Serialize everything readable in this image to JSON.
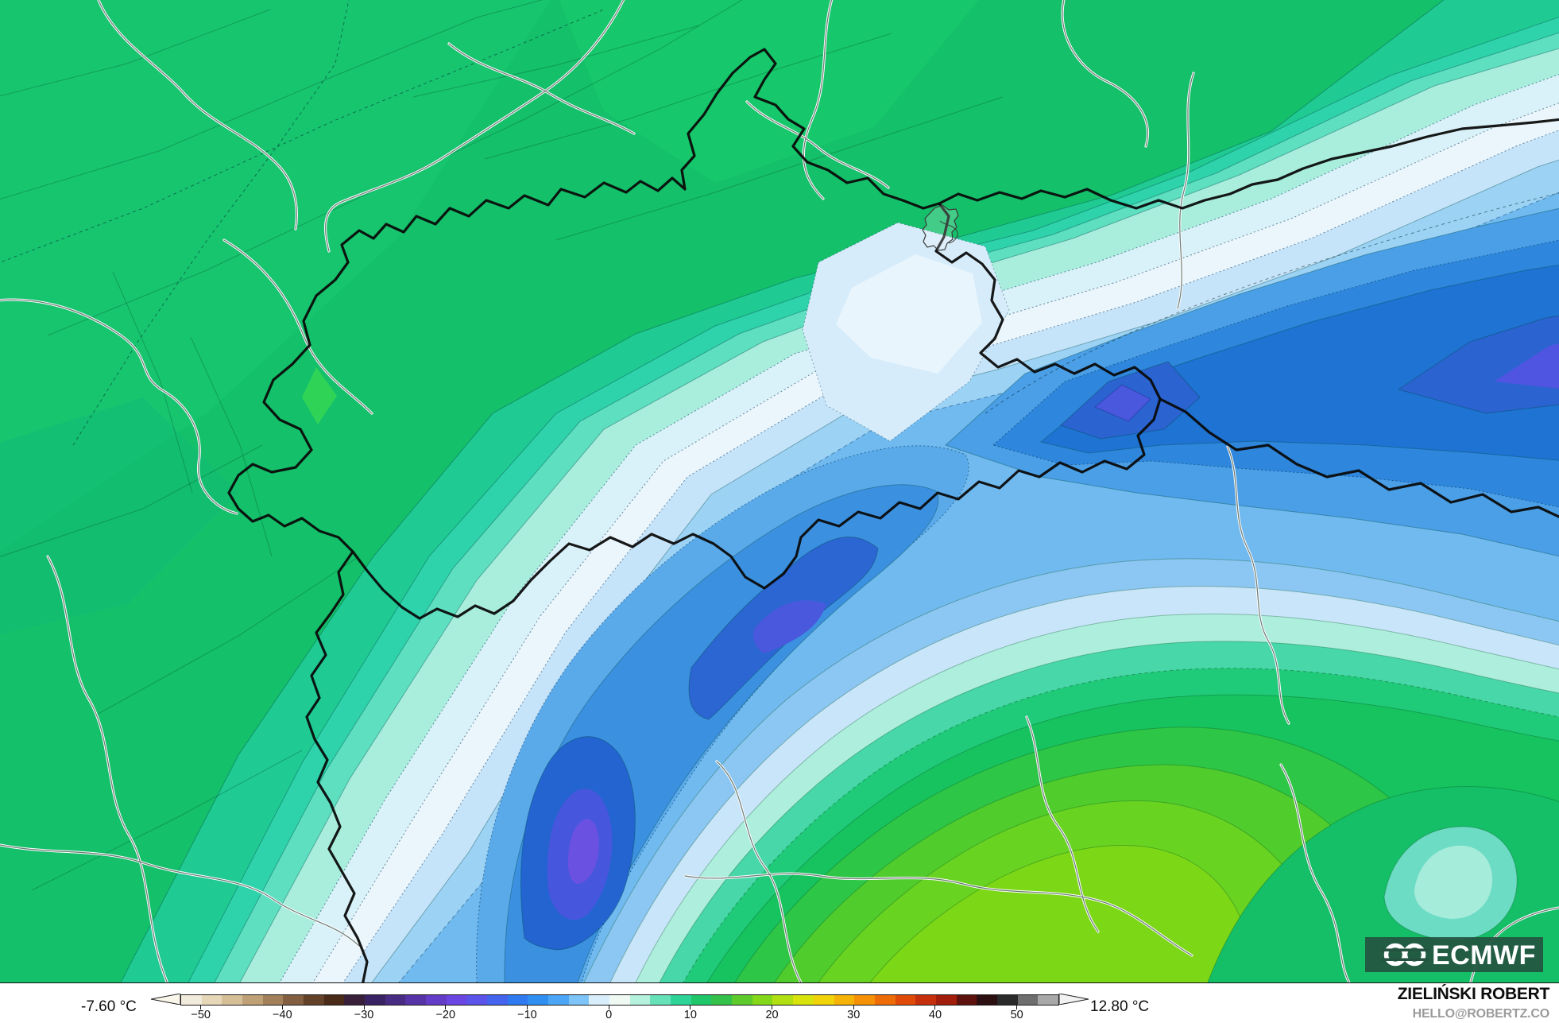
{
  "map": {
    "description": "Temperature contour map of the Alps / Switzerland region",
    "logo_text": "ECMWF",
    "region_colors": {
      "base_green": "#14c06a",
      "teal": "#27d0a2",
      "mint": "#a9eedd",
      "pale_cyan": "#d9f1f8",
      "white_band": "#ebf6fc",
      "light_blue": "#9cd3f5",
      "medium_blue": "#3b91e0",
      "deep_blue": "#1e73d3",
      "cold_core_indigo": "#4a58de",
      "cold_core_purple": "#6b51e2",
      "warm_lime": "#68d321",
      "logo_box_green": "#245441"
    }
  },
  "colorbar": {
    "min_label": "-7.60 °C",
    "max_label": "12.80 °C",
    "start_value": -52.5,
    "step": 2.5,
    "tick_values": [
      -50,
      -40,
      -30,
      -20,
      -10,
      0,
      10,
      20,
      30,
      40,
      50
    ],
    "tick_labels": [
      "−50",
      "−40",
      "−30",
      "−20",
      "−10",
      "0",
      "10",
      "20",
      "30",
      "40",
      "50"
    ],
    "palette": [
      "#f2ebdb",
      "#e6d7b8",
      "#d4bf97",
      "#bfa077",
      "#a1805a",
      "#835f41",
      "#64422a",
      "#4a2a18",
      "#38203a",
      "#3a2362",
      "#482c84",
      "#5734a6",
      "#643cc8",
      "#6c46e2",
      "#5c53ea",
      "#4464ee",
      "#2f7af0",
      "#2f90f2",
      "#4ba7f5",
      "#7dc5f8",
      "#d9eefb",
      "#f0faf5",
      "#b5f1dc",
      "#66e1b8",
      "#2dd495",
      "#1fc76a",
      "#35c24b",
      "#5ecb2c",
      "#85d71a",
      "#b0df12",
      "#d8e20d",
      "#f0d309",
      "#f5b307",
      "#f59007",
      "#ee6c08",
      "#df4a09",
      "#c62f0b",
      "#a21d0c",
      "#5d120d",
      "#2c0f10",
      "#2a2a2a",
      "#6e6e6e",
      "#a8a8a8"
    ]
  },
  "attribution": {
    "name": "ZIELIŃSKI ROBERT",
    "email": "HELLO@ROBERTZ.CO"
  }
}
